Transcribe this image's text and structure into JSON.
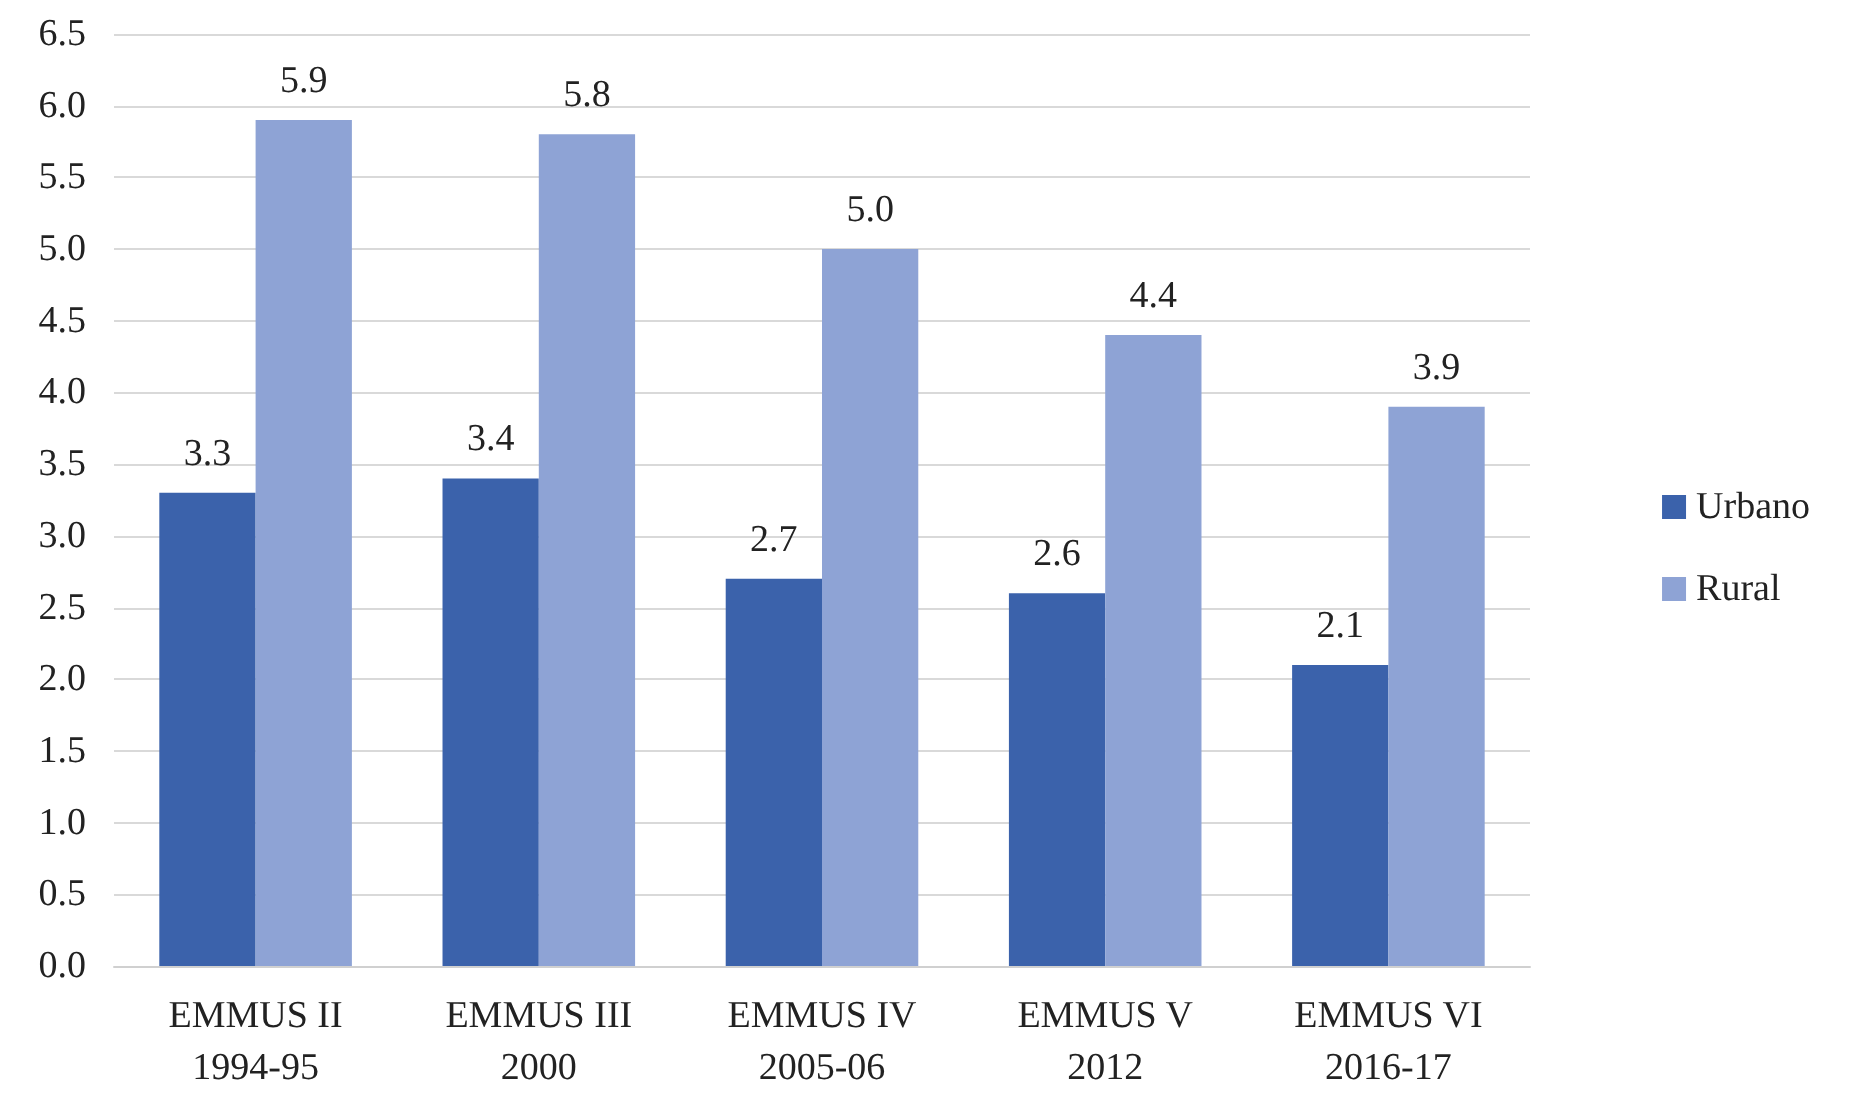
{
  "chart_data": {
    "type": "bar",
    "categories": [
      "EMMUS II\n1994-95",
      "EMMUS III\n2000",
      "EMMUS IV\n2005-06",
      "EMMUS V\n2012",
      "EMMUS VI\n2016-17"
    ],
    "series": [
      {
        "name": "Urbano",
        "color": "#3b62ab",
        "values": [
          3.3,
          3.4,
          2.7,
          2.6,
          2.1
        ],
        "value_labels": [
          "3.3",
          "3.4",
          "2.7",
          "2.6",
          "2.1"
        ]
      },
      {
        "name": "Rural",
        "color": "#8ea3d5",
        "values": [
          5.9,
          5.8,
          5.0,
          4.4,
          3.9
        ],
        "value_labels": [
          "5.9",
          "5.8",
          "5.0",
          "4.4",
          "3.9"
        ]
      }
    ],
    "ylim": [
      0,
      6.5
    ],
    "yticks": [
      {
        "value": 0,
        "label": "0.0"
      },
      {
        "value": 0.5,
        "label": "0.5"
      },
      {
        "value": 1,
        "label": "1.0"
      },
      {
        "value": 1.5,
        "label": "1.5"
      },
      {
        "value": 2,
        "label": "2.0"
      },
      {
        "value": 2.5,
        "label": "2.5"
      },
      {
        "value": 3,
        "label": "3.0"
      },
      {
        "value": 3.5,
        "label": "3.5"
      },
      {
        "value": 4,
        "label": "4.0"
      },
      {
        "value": 4.5,
        "label": "4.5"
      },
      {
        "value": 5,
        "label": "5.0"
      },
      {
        "value": 5.5,
        "label": "5.5"
      },
      {
        "value": 6,
        "label": "6.0"
      },
      {
        "value": 6.5,
        "label": "6.5"
      }
    ],
    "grid": "y",
    "legend": "right"
  }
}
